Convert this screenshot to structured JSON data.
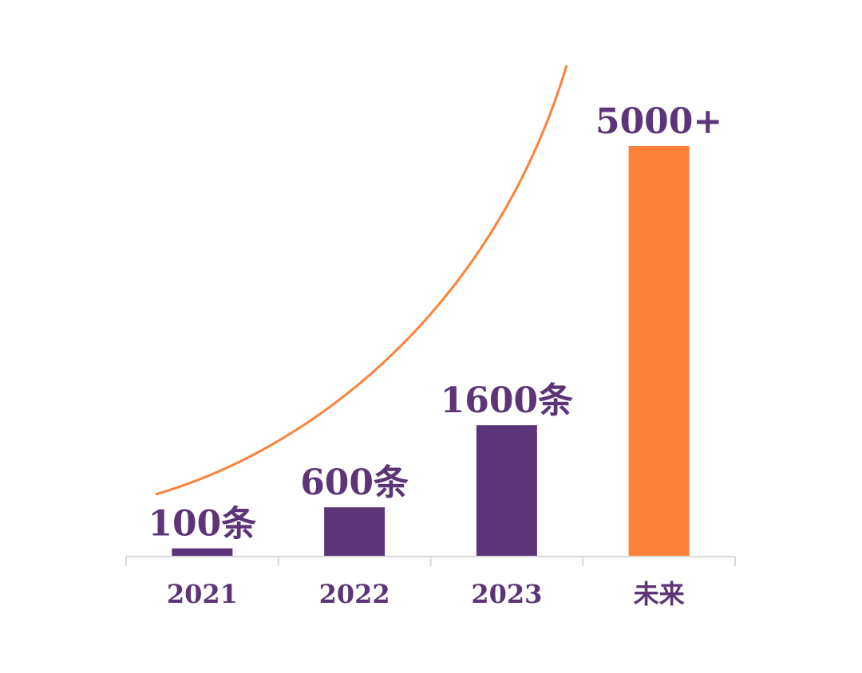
{
  "chart_data": {
    "type": "bar",
    "categories": [
      "2021",
      "2022",
      "2023",
      "未来"
    ],
    "values": [
      100,
      600,
      1600,
      5000
    ],
    "data_labels": [
      "100条",
      "600条",
      "1600条",
      "5000+"
    ],
    "colors": [
      "#5b3577",
      "#5b3577",
      "#5b3577",
      "#fd8139"
    ],
    "trend_curve_color": "#fd8139",
    "axis_color": "#d9d9d9",
    "title": "",
    "xlabel": "",
    "ylabel": "",
    "grid": false,
    "legend": "none"
  }
}
